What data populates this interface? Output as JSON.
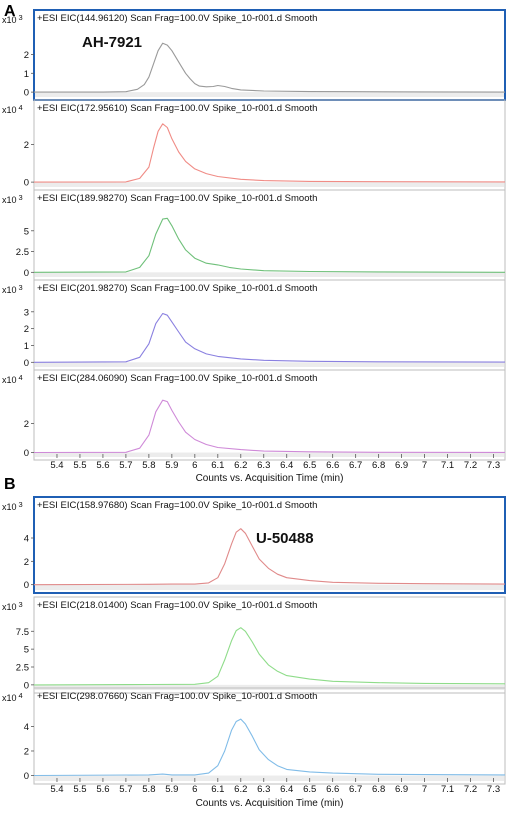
{
  "panels": [
    {
      "letter": "A",
      "xaxis_label": "Counts vs. Acquisition Time (min)",
      "x_ticks": [
        "5.4",
        "5.5",
        "5.6",
        "5.7",
        "5.8",
        "5.9",
        "6",
        "6.1",
        "6.2",
        "6.3",
        "6.4",
        "6.5",
        "6.6",
        "6.7",
        "6.8",
        "6.9",
        "7",
        "7.1",
        "7.2",
        "7.3"
      ],
      "traces": [
        {
          "title": "+ESI EIC(144.96120) Scan Frag=100.0V Spike_10-r001.d  Smooth",
          "mult": "x10",
          "exp": "3",
          "y_ticks": [
            "0",
            "1",
            "2"
          ],
          "compound": "AH-7921",
          "highlight": true
        },
        {
          "title": "+ESI EIC(172.95610) Scan Frag=100.0V Spike_10-r001.d  Smooth",
          "mult": "x10",
          "exp": "4",
          "y_ticks": [
            "0",
            "2"
          ],
          "compound": "",
          "highlight": false
        },
        {
          "title": "+ESI EIC(189.98270) Scan Frag=100.0V Spike_10-r001.d  Smooth",
          "mult": "x10",
          "exp": "3",
          "y_ticks": [
            "0",
            "2.5",
            "5"
          ],
          "compound": "",
          "highlight": false
        },
        {
          "title": "+ESI EIC(201.98270) Scan Frag=100.0V Spike_10-r001.d  Smooth",
          "mult": "x10",
          "exp": "3",
          "y_ticks": [
            "0",
            "1",
            "2",
            "3"
          ],
          "compound": "",
          "highlight": false
        },
        {
          "title": "+ESI EIC(284.06090) Scan Frag=100.0V Spike_10-r001.d  Smooth",
          "mult": "x10",
          "exp": "4",
          "y_ticks": [
            "0",
            "2"
          ],
          "compound": "",
          "highlight": false
        }
      ]
    },
    {
      "letter": "B",
      "xaxis_label": "Counts vs. Acquisition Time (min)",
      "x_ticks": [
        "5.4",
        "5.5",
        "5.6",
        "5.7",
        "5.8",
        "5.9",
        "6",
        "6.1",
        "6.2",
        "6.3",
        "6.4",
        "6.5",
        "6.6",
        "6.7",
        "6.8",
        "6.9",
        "7",
        "7.1",
        "7.2",
        "7.3"
      ],
      "traces": [
        {
          "title": "+ESI EIC(158.97680) Scan Frag=100.0V Spike_10-r001.d  Smooth",
          "mult": "x10",
          "exp": "3",
          "y_ticks": [
            "0",
            "2",
            "4"
          ],
          "compound": "U-50488",
          "highlight": true
        },
        {
          "title": "+ESI EIC(218.01400) Scan Frag=100.0V Spike_10-r001.d  Smooth",
          "mult": "x10",
          "exp": "3",
          "y_ticks": [
            "0",
            "2.5",
            "5",
            "7.5"
          ],
          "compound": "",
          "highlight": false
        },
        {
          "title": "+ESI EIC(298.07660) Scan Frag=100.0V Spike_10-r001.d  Smooth",
          "mult": "x10",
          "exp": "4",
          "y_ticks": [
            "0",
            "2",
            "4"
          ],
          "compound": "",
          "highlight": false
        }
      ]
    }
  ],
  "chart_data": [
    {
      "type": "line",
      "panel": "A",
      "xlabel": "Counts vs. Acquisition Time (min)",
      "xlim": [
        5.3,
        7.35
      ],
      "series": [
        {
          "title": "+ESI EIC(144.96120) Scan Frag=100.0V Spike_10-r001.d  Smooth",
          "y_multiplier": "x10^3",
          "color": "#9a9a9a",
          "ylim": [
            -0.1,
            3.3
          ],
          "x": [
            5.3,
            5.6,
            5.7,
            5.75,
            5.78,
            5.8,
            5.82,
            5.84,
            5.86,
            5.88,
            5.9,
            5.92,
            5.94,
            5.96,
            5.98,
            6.0,
            6.02,
            6.05,
            6.08,
            6.1,
            6.13,
            6.16,
            6.2,
            6.3,
            6.5,
            6.7,
            7.0,
            7.35
          ],
          "y": [
            0,
            0,
            0.02,
            0.15,
            0.4,
            0.8,
            1.5,
            2.2,
            2.6,
            2.5,
            2.2,
            1.8,
            1.4,
            1.0,
            0.7,
            0.45,
            0.32,
            0.28,
            0.3,
            0.35,
            0.3,
            0.2,
            0.12,
            0.06,
            0.03,
            0.02,
            0.01,
            0
          ]
        },
        {
          "title": "+ESI EIC(172.95610) Scan Frag=100.0V Spike_10-r001.d  Smooth",
          "y_multiplier": "x10^4",
          "color": "#f08c86",
          "ylim": [
            -0.1,
            3.3
          ],
          "x": [
            5.3,
            5.7,
            5.76,
            5.8,
            5.82,
            5.84,
            5.86,
            5.88,
            5.9,
            5.93,
            5.96,
            6.0,
            6.05,
            6.1,
            6.2,
            6.3,
            6.5,
            6.8,
            7.35
          ],
          "y": [
            0,
            0.01,
            0.2,
            0.8,
            1.8,
            2.7,
            3.1,
            2.9,
            2.3,
            1.6,
            1.1,
            0.7,
            0.45,
            0.3,
            0.15,
            0.08,
            0.04,
            0.02,
            0.01
          ]
        },
        {
          "title": "+ESI EIC(189.98270) Scan Frag=100.0V Spike_10-r001.d  Smooth",
          "y_multiplier": "x10^3",
          "color": "#6fc07a",
          "ylim": [
            -0.2,
            7.5
          ],
          "x": [
            5.3,
            5.7,
            5.76,
            5.8,
            5.83,
            5.86,
            5.88,
            5.9,
            5.93,
            5.96,
            6.0,
            6.05,
            6.1,
            6.15,
            6.2,
            6.3,
            6.5,
            6.8,
            7.35
          ],
          "y": [
            0,
            0.05,
            0.6,
            2.0,
            4.6,
            6.4,
            6.5,
            5.6,
            4.0,
            2.7,
            1.7,
            1.1,
            0.9,
            0.6,
            0.4,
            0.2,
            0.1,
            0.05,
            0
          ]
        },
        {
          "title": "+ESI EIC(201.98270) Scan Frag=100.0V Spike_10-r001.d  Smooth",
          "y_multiplier": "x10^3",
          "color": "#8a80e0",
          "ylim": [
            -0.1,
            3.7
          ],
          "x": [
            5.3,
            5.7,
            5.76,
            5.8,
            5.83,
            5.86,
            5.88,
            5.9,
            5.93,
            5.96,
            6.0,
            6.05,
            6.1,
            6.2,
            6.3,
            6.5,
            6.8,
            7.35
          ],
          "y": [
            0,
            0.03,
            0.3,
            1.1,
            2.3,
            2.9,
            2.8,
            2.4,
            1.8,
            1.2,
            0.8,
            0.5,
            0.35,
            0.2,
            0.12,
            0.06,
            0.03,
            0.01
          ]
        },
        {
          "title": "+ESI EIC(284.06090) Scan Frag=100.0V Spike_10-r001.d  Smooth",
          "y_multiplier": "x10^4",
          "color": "#cf8ad8",
          "ylim": [
            -0.1,
            4.3
          ],
          "x": [
            5.3,
            5.7,
            5.76,
            5.8,
            5.83,
            5.86,
            5.88,
            5.9,
            5.93,
            5.96,
            6.0,
            6.05,
            6.1,
            6.2,
            6.3,
            6.5,
            6.8,
            7.35
          ],
          "y": [
            0,
            0.02,
            0.3,
            1.2,
            2.8,
            3.6,
            3.5,
            2.9,
            2.1,
            1.4,
            0.9,
            0.55,
            0.35,
            0.2,
            0.1,
            0.05,
            0.02,
            0.01
          ]
        }
      ]
    },
    {
      "type": "line",
      "panel": "B",
      "xlabel": "Counts vs. Acquisition Time (min)",
      "xlim": [
        5.3,
        7.35
      ],
      "series": [
        {
          "title": "+ESI EIC(158.97680) Scan Frag=100.0V Spike_10-r001.d  Smooth",
          "y_multiplier": "x10^3",
          "color": "#e08a8a",
          "ylim": [
            -0.2,
            5.8
          ],
          "x": [
            5.3,
            5.8,
            5.9,
            6.0,
            6.06,
            6.1,
            6.13,
            6.16,
            6.18,
            6.2,
            6.22,
            6.25,
            6.28,
            6.32,
            6.36,
            6.4,
            6.5,
            6.6,
            6.8,
            7.0,
            7.35
          ],
          "y": [
            0,
            0.03,
            0.05,
            0.05,
            0.15,
            0.6,
            1.8,
            3.5,
            4.5,
            4.8,
            4.4,
            3.3,
            2.2,
            1.4,
            0.9,
            0.6,
            0.35,
            0.2,
            0.12,
            0.08,
            0.05
          ]
        },
        {
          "title": "+ESI EIC(218.01400) Scan Frag=100.0V Spike_10-r001.d  Smooth",
          "y_multiplier": "x10^3",
          "color": "#8fdc8a",
          "ylim": [
            -0.3,
            9.5
          ],
          "x": [
            5.3,
            5.8,
            6.0,
            6.06,
            6.1,
            6.13,
            6.16,
            6.18,
            6.2,
            6.22,
            6.25,
            6.28,
            6.32,
            6.36,
            6.4,
            6.5,
            6.6,
            6.8,
            7.0,
            7.35
          ],
          "y": [
            0,
            0.05,
            0.08,
            0.3,
            1.2,
            3.5,
            6.2,
            7.6,
            8.0,
            7.5,
            6.0,
            4.3,
            2.8,
            1.9,
            1.3,
            0.8,
            0.5,
            0.3,
            0.2,
            0.15
          ]
        },
        {
          "title": "+ESI EIC(298.07660) Scan Frag=100.0V Spike_10-r001.d  Smooth",
          "y_multiplier": "x10^4",
          "color": "#80bce8",
          "ylim": [
            -0.2,
            5.5
          ],
          "x": [
            5.3,
            5.8,
            5.86,
            5.9,
            6.0,
            6.06,
            6.1,
            6.13,
            6.16,
            6.18,
            6.2,
            6.22,
            6.25,
            6.28,
            6.32,
            6.36,
            6.4,
            6.5,
            6.6,
            6.8,
            7.0,
            7.35
          ],
          "y": [
            0,
            0.05,
            0.12,
            0.05,
            0.05,
            0.2,
            0.8,
            2.0,
            3.7,
            4.4,
            4.6,
            4.2,
            3.2,
            2.1,
            1.3,
            0.8,
            0.5,
            0.3,
            0.2,
            0.1,
            0.08,
            0.05
          ]
        }
      ]
    }
  ]
}
